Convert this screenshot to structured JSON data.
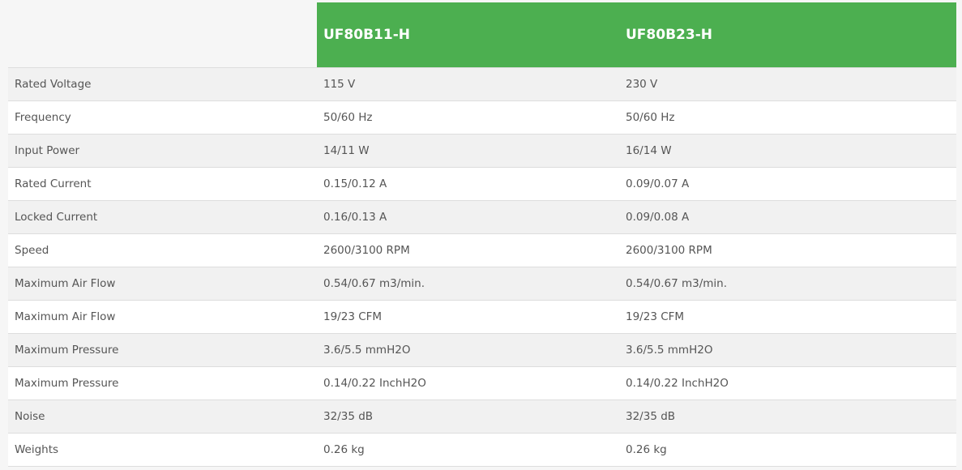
{
  "header": {
    "models": [
      "UF80B11-H",
      "UF80B23-H"
    ]
  },
  "accent_color": "#4caf50",
  "rows": [
    {
      "label": "Rated Voltage",
      "v1": "115 V",
      "v2": "230 V"
    },
    {
      "label": "Frequency",
      "v1": "50/60 Hz",
      "v2": "50/60 Hz"
    },
    {
      "label": "Input Power",
      "v1": "14/11 W",
      "v2": "16/14 W"
    },
    {
      "label": "Rated Current",
      "v1": "0.15/0.12 A",
      "v2": "0.09/0.07 A"
    },
    {
      "label": "Locked Current",
      "v1": "0.16/0.13 A",
      "v2": "0.09/0.08 A"
    },
    {
      "label": "Speed",
      "v1": "2600/3100 RPM",
      "v2": "2600/3100 RPM"
    },
    {
      "label": "Maximum Air Flow",
      "v1": "0.54/0.67 m3/min.",
      "v2": "0.54/0.67 m3/min."
    },
    {
      "label": "Maximum Air Flow",
      "v1": "19/23 CFM",
      "v2": "19/23 CFM"
    },
    {
      "label": "Maximum Pressure",
      "v1": "3.6/5.5 mmH2O",
      "v2": "3.6/5.5 mmH2O"
    },
    {
      "label": "Maximum Pressure",
      "v1": "0.14/0.22 InchH2O",
      "v2": "0.14/0.22 InchH2O"
    },
    {
      "label": "Noise",
      "v1": "32/35 dB",
      "v2": "32/35 dB"
    },
    {
      "label": "Weights",
      "v1": "0.26 kg",
      "v2": "0.26 kg"
    }
  ]
}
